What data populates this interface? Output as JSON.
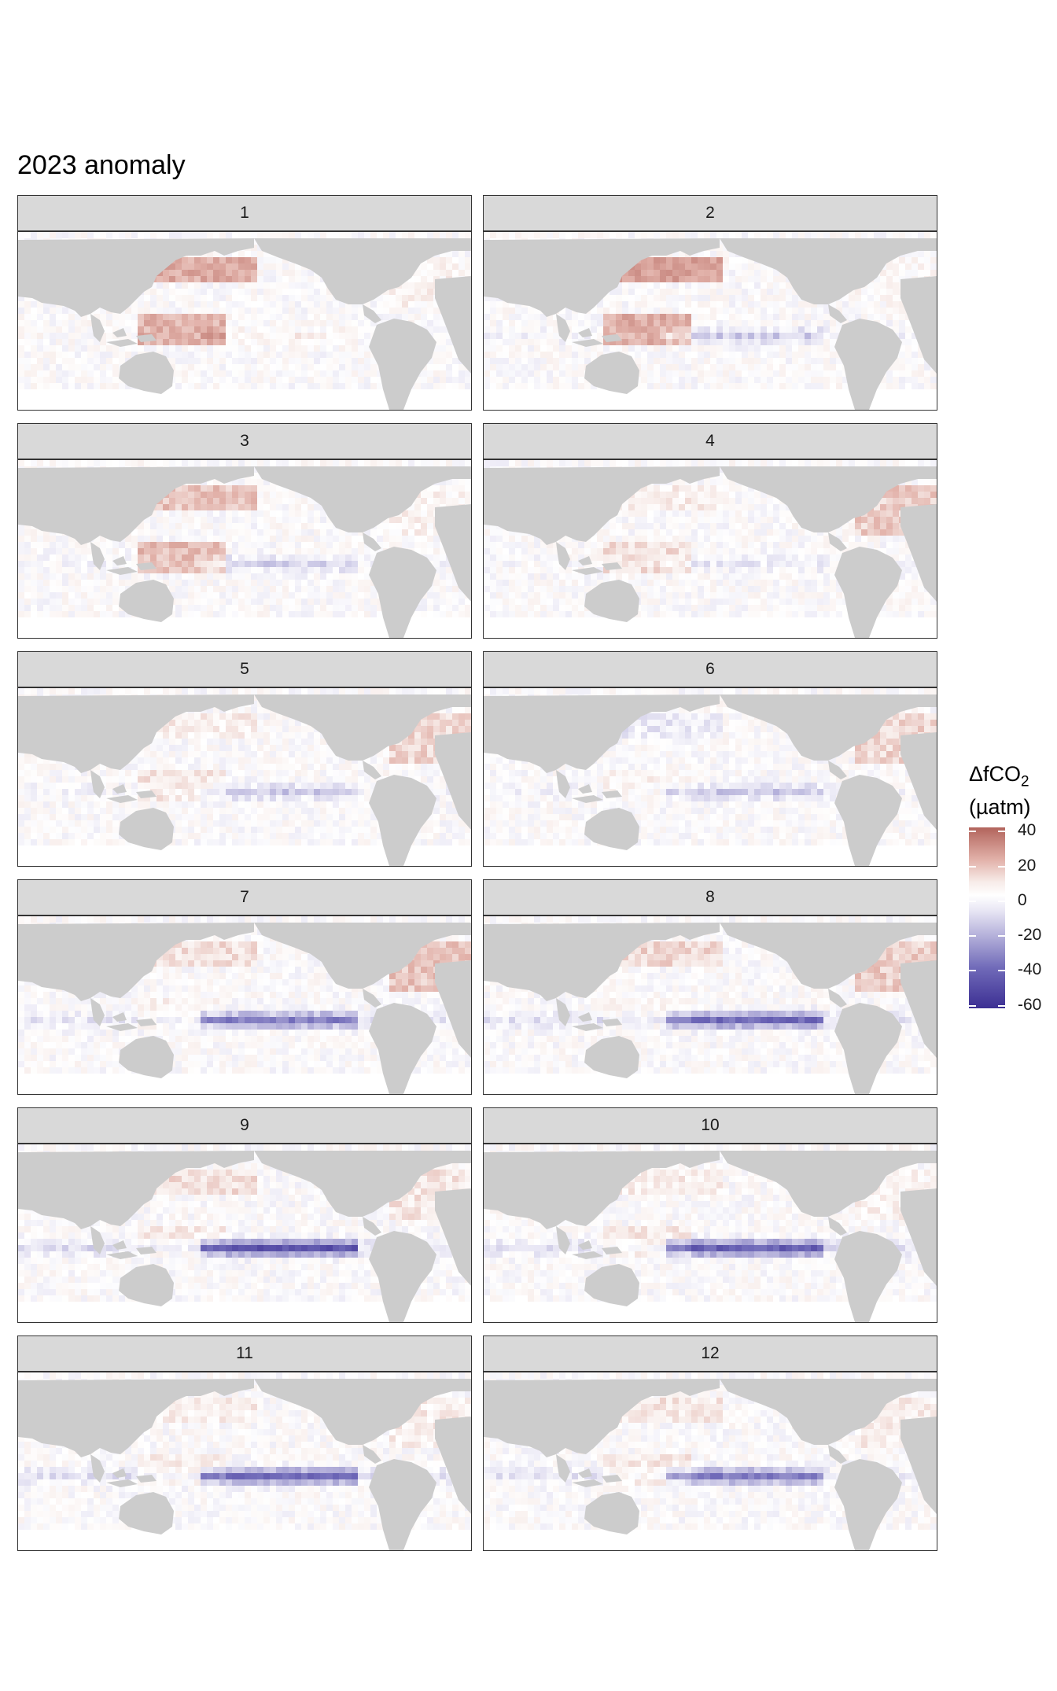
{
  "title": "2023 anomaly",
  "legend": {
    "title_main": "ΔfCO",
    "title_sub": "2",
    "title_unit": "(µatm)",
    "ticks": [
      "40",
      "20",
      "0",
      "-20",
      "-40",
      "-60"
    ],
    "range": [
      -62,
      42
    ],
    "colors": {
      "high": "#b2645c",
      "mid": "#ffffff",
      "low": "#3c2f93",
      "land": "#cccccc"
    }
  },
  "panels": [
    {
      "label": "1"
    },
    {
      "label": "2"
    },
    {
      "label": "3"
    },
    {
      "label": "4"
    },
    {
      "label": "5"
    },
    {
      "label": "6"
    },
    {
      "label": "7"
    },
    {
      "label": "8"
    },
    {
      "label": "9"
    },
    {
      "label": "10"
    },
    {
      "label": "11"
    },
    {
      "label": "12"
    }
  ]
}
